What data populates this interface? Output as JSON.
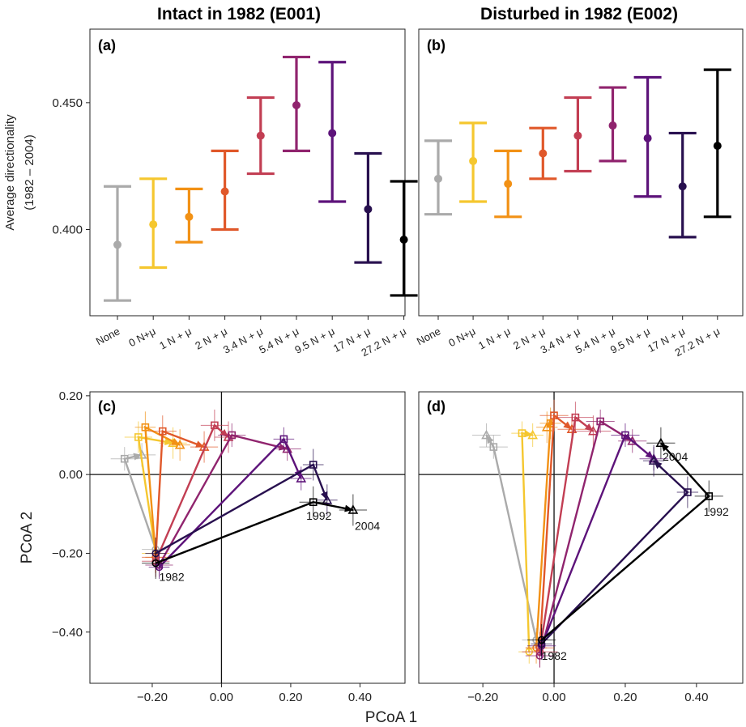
{
  "titles": {
    "left": "Intact in 1982 (E001)",
    "right": "Disturbed in 1982 (E002)"
  },
  "treatment_colors": [
    "#aaaaaa",
    "#f5c72f",
    "#f29115",
    "#e0582a",
    "#c23e53",
    "#90246e",
    "#5d137a",
    "#28104f",
    "#000000"
  ],
  "chart_data": [
    {
      "type": "scatter",
      "panel": "(a)",
      "title": "Intact in 1982 (E001)",
      "ylabel": "Average directionality",
      "ylabel_sub": "(1982 – 2004)",
      "ylim": [
        0.366,
        0.479
      ],
      "yticks": [
        0.4,
        0.45
      ],
      "ytick_labels": [
        "0.400",
        "0.450"
      ],
      "categories": [
        "None",
        "0 N+μ",
        "1 N + μ",
        "2 N + μ",
        "3.4 N + μ",
        "5.4 N + μ",
        "9.5 N + μ",
        "17 N + μ",
        "27.2 N + μ"
      ],
      "mean": [
        0.394,
        0.402,
        0.405,
        0.415,
        0.437,
        0.449,
        0.438,
        0.408,
        0.396
      ],
      "lower": [
        0.372,
        0.385,
        0.395,
        0.4,
        0.422,
        0.431,
        0.411,
        0.387,
        0.374
      ],
      "upper": [
        0.417,
        0.42,
        0.416,
        0.431,
        0.452,
        0.468,
        0.466,
        0.43,
        0.419
      ]
    },
    {
      "type": "scatter",
      "panel": "(b)",
      "title": "Disturbed in 1982 (E002)",
      "ylim": [
        0.366,
        0.479
      ],
      "categories": [
        "None",
        "0 N+μ",
        "1 N + μ",
        "2 N + μ",
        "3.4 N + μ",
        "5.4 N + μ",
        "9.5 N + μ",
        "17 N + μ",
        "27.2 N + μ"
      ],
      "mean": [
        0.42,
        0.427,
        0.418,
        0.43,
        0.437,
        0.441,
        0.436,
        0.417,
        0.433
      ],
      "lower": [
        0.406,
        0.411,
        0.405,
        0.42,
        0.423,
        0.427,
        0.413,
        0.397,
        0.405
      ],
      "upper": [
        0.435,
        0.442,
        0.431,
        0.44,
        0.452,
        0.456,
        0.46,
        0.438,
        0.463
      ]
    },
    {
      "type": "line",
      "panel": "(c)",
      "xlabel": "PCoA 1",
      "ylabel": "PCoA 2",
      "xlim": [
        -0.38,
        0.53
      ],
      "ylim": [
        -0.53,
        0.21
      ],
      "xticks": [
        -0.2,
        0.0,
        0.2,
        0.4
      ],
      "xtick_labels": [
        "−0.20",
        "0.00",
        "0.20",
        "0.40"
      ],
      "yticks": [
        -0.4,
        -0.2,
        0.0,
        0.2
      ],
      "ytick_labels": [
        "−0.40",
        "−0.20",
        "0.00",
        "0.20"
      ],
      "year_labels": [
        {
          "text": "1982",
          "x": -0.18,
          "y": -0.27
        },
        {
          "text": "1992",
          "x": 0.245,
          "y": -0.115
        },
        {
          "text": "2004",
          "x": 0.385,
          "y": -0.14
        }
      ],
      "series": [
        {
          "name": "None",
          "start": [
            -0.19,
            -0.19
          ],
          "mid": [
            -0.28,
            0.04
          ],
          "end": [
            -0.23,
            0.05
          ],
          "err": [
            0.04,
            0.03
          ]
        },
        {
          "name": "0 N+μ",
          "start": [
            -0.19,
            -0.2
          ],
          "mid": [
            -0.24,
            0.095
          ],
          "end": [
            -0.14,
            0.08
          ],
          "err": [
            0.04,
            0.04
          ]
        },
        {
          "name": "1 N + μ",
          "start": [
            -0.19,
            -0.21
          ],
          "mid": [
            -0.22,
            0.12
          ],
          "end": [
            -0.12,
            0.075
          ],
          "err": [
            0.03,
            0.04
          ]
        },
        {
          "name": "2 N + μ",
          "start": [
            -0.19,
            -0.21
          ],
          "mid": [
            -0.17,
            0.11
          ],
          "end": [
            -0.05,
            0.07
          ],
          "err": [
            0.04,
            0.04
          ]
        },
        {
          "name": "3.4 N + μ",
          "start": [
            -0.19,
            -0.22
          ],
          "mid": [
            -0.02,
            0.125
          ],
          "end": [
            0.02,
            0.095
          ],
          "err": [
            0.04,
            0.04
          ]
        },
        {
          "name": "5.4 N + μ",
          "start": [
            -0.18,
            -0.23
          ],
          "mid": [
            0.03,
            0.1
          ],
          "end": [
            0.19,
            0.065
          ],
          "err": [
            0.04,
            0.03
          ]
        },
        {
          "name": "9.5 N + μ",
          "start": [
            -0.18,
            -0.235
          ],
          "mid": [
            0.18,
            0.09
          ],
          "end": [
            0.23,
            -0.01
          ],
          "err": [
            0.03,
            0.03
          ]
        },
        {
          "name": "17 N + μ",
          "start": [
            -0.19,
            -0.2
          ],
          "mid": [
            0.265,
            0.025
          ],
          "end": [
            0.305,
            -0.065
          ],
          "err": [
            0.03,
            0.04
          ]
        },
        {
          "name": "27.2 N + μ",
          "start": [
            -0.19,
            -0.225
          ],
          "mid": [
            0.265,
            -0.07
          ],
          "end": [
            0.38,
            -0.09
          ],
          "err": [
            0.04,
            0.04
          ]
        }
      ]
    },
    {
      "type": "line",
      "panel": "(d)",
      "xlabel": "PCoA 1",
      "xlim": [
        -0.38,
        0.53
      ],
      "ylim": [
        -0.53,
        0.21
      ],
      "xticks": [
        -0.2,
        0.0,
        0.2,
        0.4
      ],
      "xtick_labels": [
        "−0.20",
        "0.00",
        "0.20",
        "0.40"
      ],
      "year_labels": [
        {
          "text": "1982",
          "x": -0.035,
          "y": -0.47
        },
        {
          "text": "1992",
          "x": 0.42,
          "y": -0.105
        },
        {
          "text": "2004",
          "x": 0.305,
          "y": 0.035
        }
      ],
      "series": [
        {
          "name": "None",
          "start": [
            -0.05,
            -0.42
          ],
          "mid": [
            -0.17,
            0.07
          ],
          "end": [
            -0.19,
            0.1
          ],
          "err": [
            0.04,
            0.03
          ]
        },
        {
          "name": "0 N+μ",
          "start": [
            -0.07,
            -0.45
          ],
          "mid": [
            -0.09,
            0.105
          ],
          "end": [
            -0.06,
            0.1
          ],
          "err": [
            0.03,
            0.03
          ]
        },
        {
          "name": "1 N + μ",
          "start": [
            -0.05,
            -0.44
          ],
          "mid": [
            -0.01,
            0.13
          ],
          "end": [
            -0.02,
            0.12
          ],
          "err": [
            0.03,
            0.04
          ]
        },
        {
          "name": "2 N + μ",
          "start": [
            -0.04,
            -0.44
          ],
          "mid": [
            0.0,
            0.15
          ],
          "end": [
            0.05,
            0.115
          ],
          "err": [
            0.04,
            0.04
          ]
        },
        {
          "name": "3.4 N + μ",
          "start": [
            -0.04,
            -0.45
          ],
          "mid": [
            0.06,
            0.145
          ],
          "end": [
            0.11,
            0.11
          ],
          "err": [
            0.05,
            0.04
          ]
        },
        {
          "name": "5.4 N + μ",
          "start": [
            -0.04,
            -0.46
          ],
          "mid": [
            0.13,
            0.135
          ],
          "end": [
            0.22,
            0.085
          ],
          "err": [
            0.04,
            0.03
          ]
        },
        {
          "name": "9.5 N + μ",
          "start": [
            -0.035,
            -0.435
          ],
          "mid": [
            0.2,
            0.1
          ],
          "end": [
            0.28,
            0.04
          ],
          "err": [
            0.04,
            0.03
          ]
        },
        {
          "name": "17 N + μ",
          "start": [
            -0.035,
            -0.43
          ],
          "mid": [
            0.375,
            -0.045
          ],
          "end": [
            0.28,
            0.035
          ],
          "err": [
            0.03,
            0.04
          ]
        },
        {
          "name": "27.2 N + μ",
          "start": [
            -0.035,
            -0.42
          ],
          "mid": [
            0.435,
            -0.055
          ],
          "end": [
            0.3,
            0.08
          ],
          "err": [
            0.04,
            0.04
          ]
        }
      ]
    }
  ]
}
